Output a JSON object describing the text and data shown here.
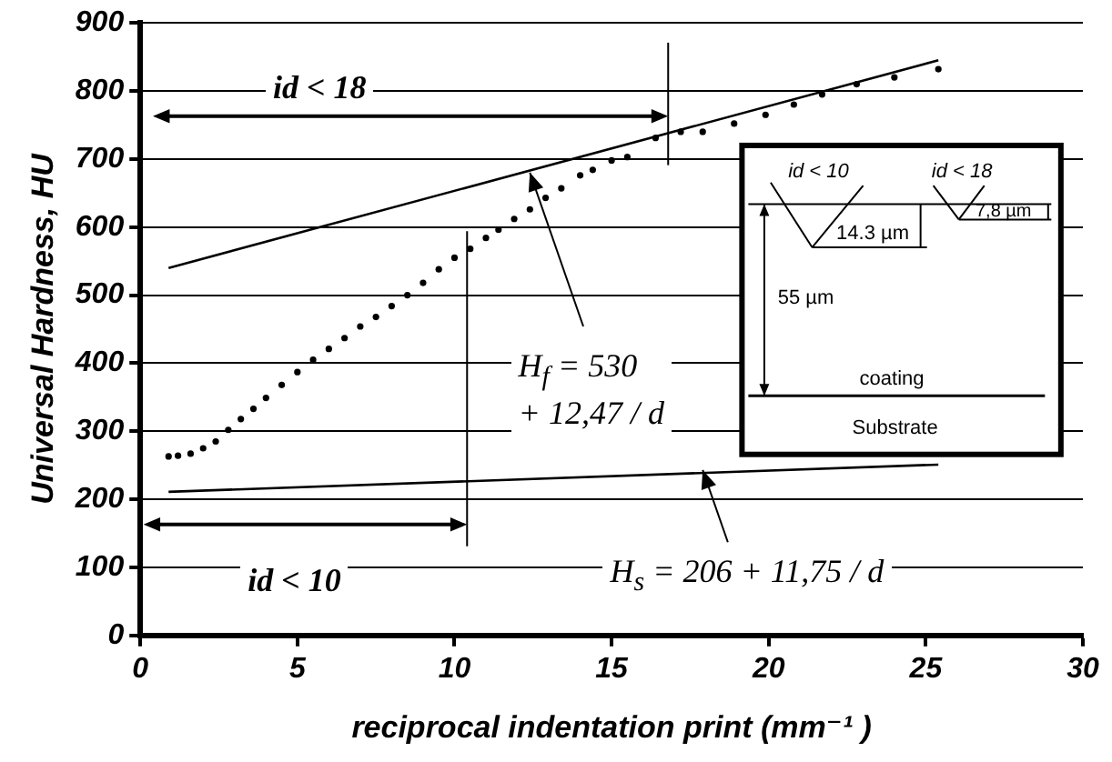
{
  "chart_data": {
    "type": "scatter",
    "xlabel": "reciprocal indentation print (mm⁻¹ )",
    "ylabel": "Universal Hardness, HU",
    "xlim": [
      0,
      30
    ],
    "xticks": [
      0,
      5,
      10,
      15,
      20,
      25,
      30
    ],
    "ylim": [
      0,
      900
    ],
    "yticks": [
      0,
      100,
      200,
      300,
      400,
      500,
      600,
      700,
      800,
      900
    ],
    "grid": "y",
    "legend": false,
    "series": [
      {
        "marker": "circle",
        "color": "#000000",
        "x": [
          0.9,
          1.2,
          1.6,
          2.0,
          2.4,
          2.8,
          3.2,
          3.6,
          4.0,
          4.5,
          5.0,
          5.5,
          6.0,
          6.5,
          7.0,
          7.5,
          8.0,
          8.5,
          9.0,
          9.5,
          10.0,
          10.5,
          11.0,
          11.4,
          11.9,
          12.4,
          12.9,
          13.4,
          14.0,
          14.4,
          15.0,
          15.5,
          16.4,
          17.2,
          17.9,
          18.9,
          19.9,
          20.8,
          21.7,
          22.8,
          24.0,
          25.4
        ],
        "values": [
          263,
          264,
          267,
          275,
          285,
          302,
          318,
          333,
          349,
          368,
          387,
          405,
          421,
          437,
          454,
          468,
          484,
          500,
          518,
          538,
          555,
          568,
          584,
          596,
          612,
          626,
          643,
          657,
          676,
          684,
          698,
          703,
          731,
          740,
          740,
          752,
          765,
          780,
          795,
          810,
          820,
          832
        ]
      },
      {
        "type": "line",
        "marker": "none",
        "color": "#000000",
        "x": [
          0.9,
          25.4
        ],
        "values": [
          540,
          845
        ]
      },
      {
        "type": "line",
        "marker": "none",
        "color": "#000000",
        "x": [
          0.9,
          25.4
        ],
        "values": [
          211,
          251
        ]
      }
    ],
    "annotations": [
      "id < 18",
      "id < 10",
      {
        "text": "H$_{f}$ = 530\n+ 12,47 / d",
        "x": 12.4,
        "y": 680
      },
      {
        "text": "H$_{s}$ = 206 + 11,75 / d",
        "x": 17.9,
        "y": 243
      },
      "id < 10",
      "id < 18",
      "14.3 µm",
      "7,8 µm",
      "55 µm",
      "coating",
      "Substrate"
    ]
  }
}
